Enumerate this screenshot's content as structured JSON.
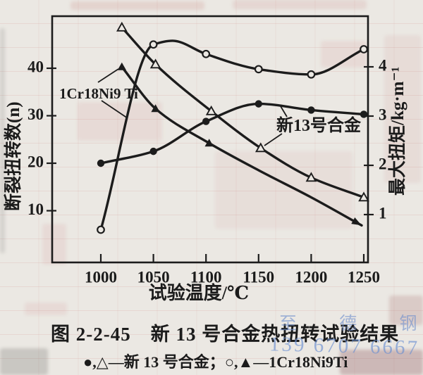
{
  "chart_data": {
    "type": "line",
    "xlabel": "试验温度/℃",
    "ylabel_left": "断裂扭转数(n)",
    "ylabel_right": "最大扭矩/kg·m⁻¹",
    "x_ticks": [
      1000,
      1050,
      1100,
      1150,
      1200,
      1250
    ],
    "y_left_ticks": [
      10,
      20,
      30,
      40
    ],
    "y_right_ticks": [
      1,
      2,
      3,
      4
    ],
    "xlim": [
      954,
      1254
    ],
    "ylim_left": [
      0,
      51
    ],
    "ylim_right": [
      0,
      5.0
    ],
    "grid": false,
    "legend_position": "below-caption",
    "series": [
      {
        "name": "新13号合金 断裂扭转数 (●)",
        "marker": "circle-filled",
        "axis": "left",
        "x": [
          1000,
          1050,
          1100,
          1150,
          1200,
          1250
        ],
        "y": [
          20,
          22.5,
          28.8,
          32.5,
          31.2,
          30.3
        ]
      },
      {
        "name": "1Cr18Ni9Ti 断裂扭转数 (○)",
        "marker": "circle-open",
        "axis": "left",
        "x": [
          1000,
          1050,
          1100,
          1150,
          1200,
          1250
        ],
        "y": [
          6,
          45,
          43,
          39.8,
          38.7,
          44
        ],
        "shape_points": [
          {
            "after": 1,
            "x": 1068,
            "y": 45.8
          }
        ]
      },
      {
        "name": "新13号合金 最大扭矩 (△)",
        "marker": "triangle-open",
        "axis": "right",
        "x": [
          1020,
          1052,
          1105,
          1152,
          1200,
          1250
        ],
        "y": [
          4.8,
          4.05,
          3.1,
          2.35,
          1.75,
          1.35
        ]
      },
      {
        "name": "1Cr18Ni9Ti 最大扭矩 (▲)",
        "marker": "triangle-filled",
        "axis": "right",
        "x": [
          1020,
          1052,
          1103,
          1150,
          1200,
          1248
        ],
        "y": [
          4.0,
          3.15,
          2.45,
          1.9,
          1.35,
          0.78
        ],
        "markers_shown": 3,
        "arrow_end": true
      }
    ],
    "annotations": [
      {
        "text": "1Cr18Ni9 Ti"
      },
      {
        "text": "新13号合金"
      }
    ]
  },
  "caption": {
    "text": "图 2-2-45　新 13 号合金热扭转试验结果"
  },
  "legend": {
    "text": "●,△—新 13 号合金；○,▲—1Cr18Ni9Ti"
  },
  "watermark": {
    "line1": "至 德 钢 业",
    "line2": "139 6707 6667",
    "color": "#6c90d2"
  },
  "colors": {
    "ink": "#1c1c1c",
    "paper": "#ebe8e3",
    "bleed_pink": "#c97f7a"
  }
}
